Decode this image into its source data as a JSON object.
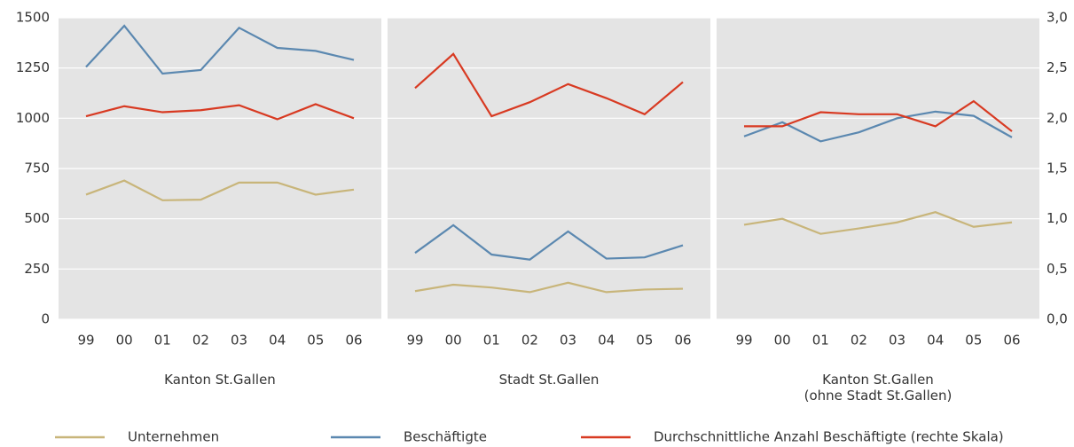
{
  "chart_data": [
    {
      "type": "line",
      "subtitle": "Kanton St.Gallen",
      "categories": [
        "99",
        "00",
        "01",
        "02",
        "03",
        "04",
        "05",
        "06"
      ],
      "ylim": [
        0,
        1500
      ],
      "yticks": [
        0,
        250,
        500,
        750,
        1000,
        1250,
        1500
      ],
      "y2lim": [
        0,
        3
      ],
      "grid": true,
      "series": [
        {
          "name": "Unternehmen",
          "color": "#c8b57a",
          "values": [
            620,
            690,
            592,
            595,
            680,
            680,
            620,
            645
          ]
        },
        {
          "name": "Beschäftigte",
          "color": "#5b88b0",
          "values": [
            1255,
            1460,
            1222,
            1240,
            1450,
            1350,
            1335,
            1290
          ]
        },
        {
          "name": "Durchschnittliche Anzahl Beschäftigte (rechte Skala)",
          "color": "#d83a22",
          "axis": "y2",
          "values": [
            2.02,
            2.12,
            2.06,
            2.08,
            2.13,
            1.99,
            2.14,
            2.0
          ]
        }
      ]
    },
    {
      "type": "line",
      "subtitle": "Stadt St.Gallen",
      "categories": [
        "99",
        "00",
        "01",
        "02",
        "03",
        "04",
        "05",
        "06"
      ],
      "ylim": [
        0,
        1500
      ],
      "y2lim": [
        0,
        3
      ],
      "grid": true,
      "series": [
        {
          "name": "Unternehmen",
          "color": "#c8b57a",
          "values": [
            140,
            172,
            158,
            135,
            182,
            135,
            148,
            152
          ]
        },
        {
          "name": "Beschäftigte",
          "color": "#5b88b0",
          "values": [
            330,
            468,
            322,
            297,
            437,
            302,
            308,
            368
          ]
        },
        {
          "name": "Durchschnittliche Anzahl Beschäftigte (rechte Skala)",
          "color": "#d83a22",
          "axis": "y2",
          "values": [
            2.3,
            2.64,
            2.02,
            2.16,
            2.34,
            2.2,
            2.04,
            2.36
          ]
        }
      ]
    },
    {
      "type": "line",
      "subtitle": "Kanton St.Gallen\n(ohne Stadt St.Gallen)",
      "categories": [
        "99",
        "00",
        "01",
        "02",
        "03",
        "04",
        "05",
        "06"
      ],
      "ylim": [
        0,
        1500
      ],
      "y2lim": [
        0,
        3
      ],
      "y2ticks": [
        {
          "value": 0,
          "label": "0,0"
        },
        {
          "value": 0.5,
          "label": "0,5"
        },
        {
          "value": 1,
          "label": "1,0"
        },
        {
          "value": 1.5,
          "label": "1,5"
        },
        {
          "value": 2,
          "label": "2,0"
        },
        {
          "value": 2.5,
          "label": "2,5"
        },
        {
          "value": 3,
          "label": "3,0"
        }
      ],
      "grid": true,
      "series": [
        {
          "name": "Unternehmen",
          "color": "#c8b57a",
          "values": [
            470,
            500,
            425,
            452,
            482,
            533,
            460,
            482
          ]
        },
        {
          "name": "Beschäftigte",
          "color": "#5b88b0",
          "values": [
            910,
            980,
            885,
            930,
            1000,
            1033,
            1012,
            905
          ]
        },
        {
          "name": "Durchschnittliche Anzahl Beschäftigte (rechte Skala)",
          "color": "#d83a22",
          "axis": "y2",
          "values": [
            1.92,
            1.92,
            2.06,
            2.04,
            2.04,
            1.92,
            2.17,
            1.87
          ]
        }
      ]
    }
  ]
}
